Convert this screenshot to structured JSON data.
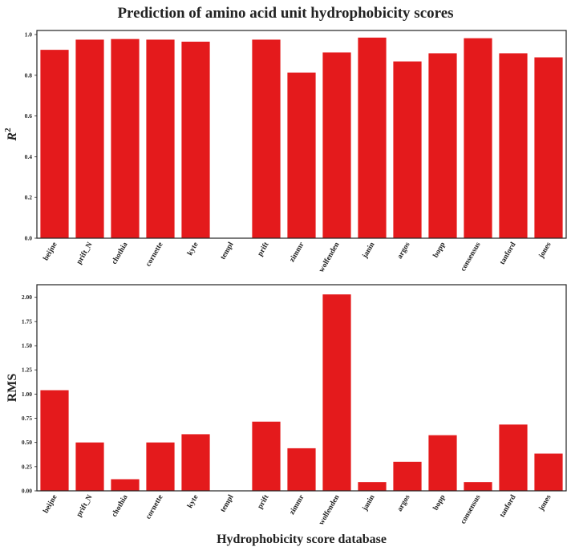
{
  "title": "Prediction of amino acid unit hydrophobicity scores",
  "xlabel": "Hydrophobicity score database",
  "bar_color": "#e41a1c",
  "chart_data": [
    {
      "type": "bar",
      "ylabel": "R",
      "ylabel_superscript": "2",
      "ylim": [
        0,
        1.02
      ],
      "yticks": [
        0,
        0.2,
        0.4,
        0.6,
        0.8,
        1.0
      ],
      "ytick_labels": [
        "0.0",
        "0.2",
        "0.4",
        "0.6",
        "0.8",
        "1.0"
      ],
      "grid": false,
      "categories": [
        "beijne",
        "prift_N",
        "chothia",
        "cornette",
        "kyte",
        "templ",
        "prift",
        "zimmr",
        "wolfenden",
        "janin",
        "argos",
        "bopp",
        "consensus",
        "tanford",
        "jones"
      ],
      "values": [
        0.925,
        0.975,
        0.978,
        0.975,
        0.965,
        0.0,
        0.975,
        0.813,
        0.912,
        0.985,
        0.868,
        0.908,
        0.982,
        0.908,
        0.888
      ]
    },
    {
      "type": "bar",
      "ylabel": "RMS",
      "ylim": [
        0,
        2.13
      ],
      "yticks": [
        0,
        0.25,
        0.5,
        0.75,
        1.0,
        1.25,
        1.5,
        1.75,
        2.0
      ],
      "ytick_labels": [
        "0.00",
        "0.25",
        "0.50",
        "0.75",
        "1.00",
        "1.25",
        "1.50",
        "1.75",
        "2.00"
      ],
      "grid": false,
      "categories": [
        "beijne",
        "prift_N",
        "chothia",
        "cornette",
        "kyte",
        "templ",
        "prift",
        "zimmr",
        "wolfenden",
        "janin",
        "argos",
        "bopp",
        "consensus",
        "tanford",
        "jones"
      ],
      "values": [
        1.04,
        0.5,
        0.12,
        0.5,
        0.585,
        0.0,
        0.715,
        0.44,
        2.03,
        0.09,
        0.3,
        0.575,
        0.09,
        0.685,
        0.385
      ]
    }
  ]
}
